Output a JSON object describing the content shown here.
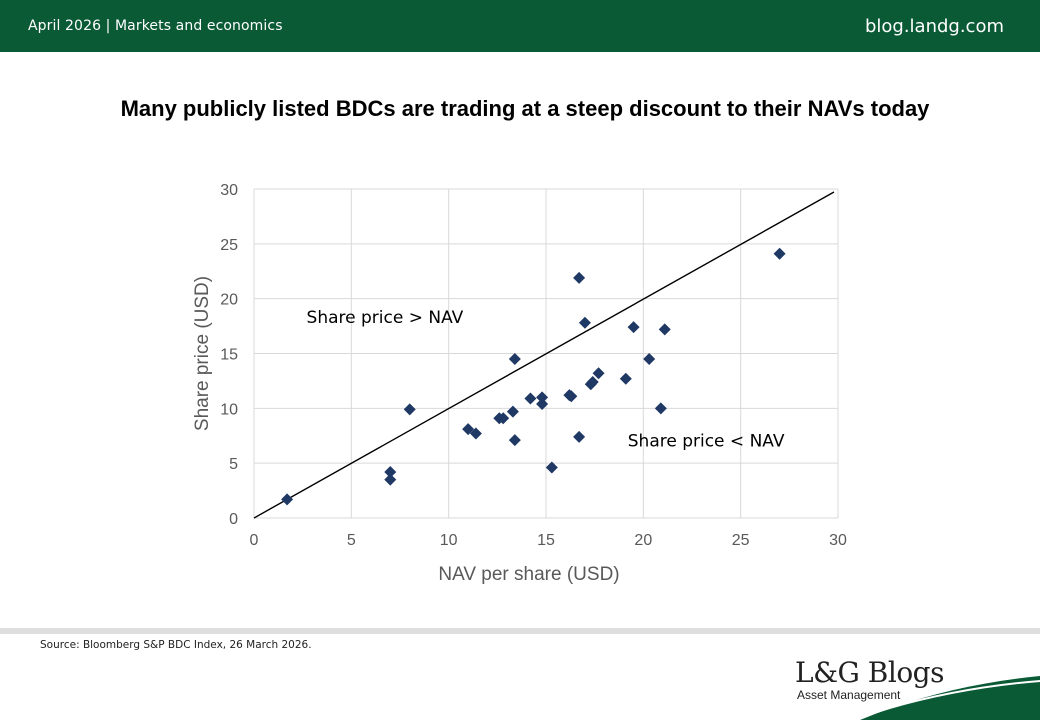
{
  "header": {
    "date_category": "April 2026 | Markets and economics",
    "site": "blog.landg.com"
  },
  "footer": {
    "source": "Source: Bloomberg S&P BDC Index, 26 March 2026.",
    "logo_title": "L&G Blogs",
    "logo_subtitle": "Asset Management"
  },
  "colors": {
    "header_bg": "#0a5a36",
    "marker": "#1f3864",
    "accent_green": "#0a5a36"
  },
  "chart_data": {
    "type": "scatter",
    "title": "Many publicly listed BDCs are trading at a steep discount to their NAVs today",
    "xlabel": "NAV per share (USD)",
    "ylabel": "Share price (USD)",
    "xlim": [
      0,
      30
    ],
    "ylim": [
      0,
      30
    ],
    "xticks": [
      "0",
      "5",
      "10",
      "15",
      "20",
      "25",
      "30"
    ],
    "yticks": [
      "0",
      "5",
      "10",
      "15",
      "20",
      "25",
      "30"
    ],
    "grid": true,
    "reference_line": {
      "from": [
        0,
        0
      ],
      "to": [
        30,
        30
      ]
    },
    "annotations": [
      {
        "text": "Share price > NAV",
        "x": 2.7,
        "y": 17.8
      },
      {
        "text": "Share price < NAV",
        "x": 19.2,
        "y": 6.5
      }
    ],
    "series": [
      {
        "marker": "diamond",
        "points": [
          [
            1.7,
            1.7
          ],
          [
            7.0,
            4.2
          ],
          [
            7.0,
            3.5
          ],
          [
            8.0,
            9.9
          ],
          [
            11.0,
            8.1
          ],
          [
            11.4,
            7.7
          ],
          [
            12.6,
            9.1
          ],
          [
            12.8,
            9.1
          ],
          [
            13.3,
            9.7
          ],
          [
            13.4,
            7.1
          ],
          [
            13.4,
            14.5
          ],
          [
            14.2,
            10.9
          ],
          [
            14.8,
            11.0
          ],
          [
            14.8,
            10.4
          ],
          [
            15.3,
            4.6
          ],
          [
            16.2,
            11.2
          ],
          [
            16.3,
            11.1
          ],
          [
            16.7,
            21.9
          ],
          [
            16.7,
            7.4
          ],
          [
            17.0,
            17.8
          ],
          [
            17.3,
            12.2
          ],
          [
            17.4,
            12.4
          ],
          [
            17.7,
            13.2
          ],
          [
            19.1,
            12.7
          ],
          [
            19.5,
            17.4
          ],
          [
            20.3,
            14.5
          ],
          [
            20.9,
            10.0
          ],
          [
            21.1,
            17.2
          ],
          [
            27.0,
            24.1
          ]
        ]
      }
    ]
  }
}
